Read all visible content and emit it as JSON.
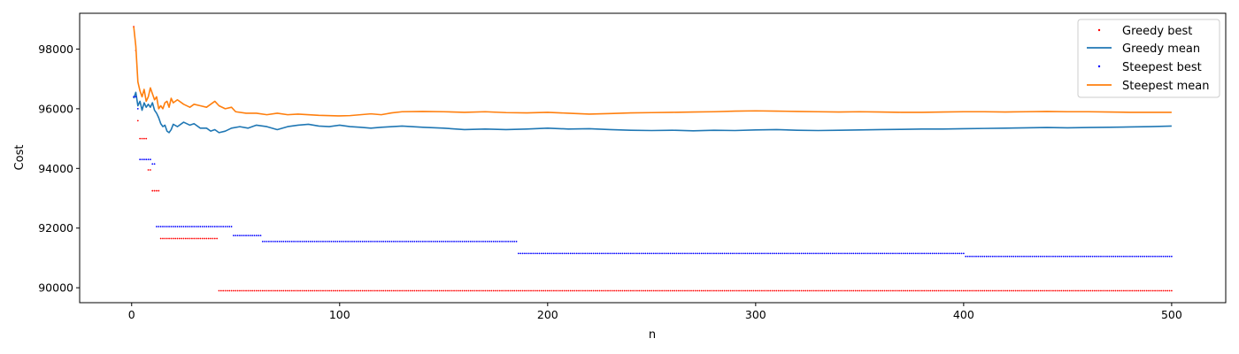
{
  "chart_data": {
    "type": "line",
    "title": "",
    "xlabel": "n",
    "ylabel": "Cost",
    "xlim": [
      -25,
      526
    ],
    "ylim": [
      89500,
      99200
    ],
    "xticks": [
      0,
      100,
      200,
      300,
      400,
      500
    ],
    "yticks": [
      90000,
      92000,
      94000,
      96000,
      98000
    ],
    "grid": false,
    "legend_position": "top-right",
    "series": [
      {
        "name": "Greedy best",
        "kind": "scatter",
        "color": "#ff0000",
        "steps": [
          {
            "from": 1,
            "to": 1,
            "value": 98750
          },
          {
            "from": 2,
            "to": 2,
            "value": 97950
          },
          {
            "from": 3,
            "to": 3,
            "value": 95600
          },
          {
            "from": 4,
            "to": 7,
            "value": 95000
          },
          {
            "from": 8,
            "to": 9,
            "value": 93950
          },
          {
            "from": 10,
            "to": 13,
            "value": 93250
          },
          {
            "from": 14,
            "to": 41,
            "value": 91650
          },
          {
            "from": 42,
            "to": 500,
            "value": 89900
          }
        ]
      },
      {
        "name": "Greedy mean",
        "kind": "line",
        "color": "#1f77b4",
        "points": [
          [
            1,
            96350
          ],
          [
            2,
            96550
          ],
          [
            3,
            96100
          ],
          [
            4,
            96250
          ],
          [
            5,
            95950
          ],
          [
            6,
            96200
          ],
          [
            7,
            96050
          ],
          [
            8,
            96150
          ],
          [
            9,
            96050
          ],
          [
            10,
            96200
          ],
          [
            11,
            95950
          ],
          [
            12,
            95850
          ],
          [
            13,
            95700
          ],
          [
            14,
            95500
          ],
          [
            15,
            95400
          ],
          [
            16,
            95450
          ],
          [
            17,
            95250
          ],
          [
            18,
            95200
          ],
          [
            19,
            95300
          ],
          [
            20,
            95480
          ],
          [
            22,
            95400
          ],
          [
            25,
            95550
          ],
          [
            28,
            95450
          ],
          [
            30,
            95500
          ],
          [
            33,
            95350
          ],
          [
            36,
            95350
          ],
          [
            38,
            95250
          ],
          [
            40,
            95300
          ],
          [
            42,
            95200
          ],
          [
            45,
            95250
          ],
          [
            48,
            95350
          ],
          [
            52,
            95400
          ],
          [
            56,
            95350
          ],
          [
            60,
            95450
          ],
          [
            65,
            95400
          ],
          [
            70,
            95300
          ],
          [
            75,
            95400
          ],
          [
            80,
            95450
          ],
          [
            85,
            95480
          ],
          [
            90,
            95420
          ],
          [
            95,
            95400
          ],
          [
            100,
            95450
          ],
          [
            105,
            95400
          ],
          [
            110,
            95380
          ],
          [
            115,
            95350
          ],
          [
            120,
            95380
          ],
          [
            130,
            95420
          ],
          [
            140,
            95380
          ],
          [
            150,
            95350
          ],
          [
            160,
            95300
          ],
          [
            170,
            95320
          ],
          [
            180,
            95300
          ],
          [
            190,
            95320
          ],
          [
            200,
            95350
          ],
          [
            210,
            95320
          ],
          [
            220,
            95330
          ],
          [
            230,
            95300
          ],
          [
            240,
            95280
          ],
          [
            250,
            95270
          ],
          [
            260,
            95280
          ],
          [
            270,
            95260
          ],
          [
            280,
            95280
          ],
          [
            290,
            95270
          ],
          [
            300,
            95290
          ],
          [
            310,
            95300
          ],
          [
            320,
            95280
          ],
          [
            330,
            95270
          ],
          [
            340,
            95280
          ],
          [
            350,
            95290
          ],
          [
            360,
            95300
          ],
          [
            370,
            95310
          ],
          [
            380,
            95320
          ],
          [
            390,
            95320
          ],
          [
            400,
            95330
          ],
          [
            410,
            95340
          ],
          [
            420,
            95350
          ],
          [
            430,
            95360
          ],
          [
            440,
            95370
          ],
          [
            450,
            95360
          ],
          [
            460,
            95370
          ],
          [
            470,
            95380
          ],
          [
            480,
            95390
          ],
          [
            490,
            95400
          ],
          [
            500,
            95420
          ]
        ]
      },
      {
        "name": "Steepest best",
        "kind": "scatter",
        "color": "#0000ff",
        "steps": [
          {
            "from": 1,
            "to": 2,
            "value": 96400
          },
          {
            "from": 3,
            "to": 3,
            "value": 96000
          },
          {
            "from": 4,
            "to": 9,
            "value": 94300
          },
          {
            "from": 10,
            "to": 11,
            "value": 94150
          },
          {
            "from": 12,
            "to": 48,
            "value": 92050
          },
          {
            "from": 49,
            "to": 62,
            "value": 91750
          },
          {
            "from": 63,
            "to": 185,
            "value": 91550
          },
          {
            "from": 186,
            "to": 400,
            "value": 91150
          },
          {
            "from": 401,
            "to": 500,
            "value": 91050
          }
        ]
      },
      {
        "name": "Steepest mean",
        "kind": "line",
        "color": "#ff7f0e",
        "points": [
          [
            1,
            98750
          ],
          [
            2,
            98100
          ],
          [
            3,
            96900
          ],
          [
            4,
            96600
          ],
          [
            5,
            96400
          ],
          [
            6,
            96650
          ],
          [
            7,
            96250
          ],
          [
            8,
            96400
          ],
          [
            9,
            96700
          ],
          [
            10,
            96500
          ],
          [
            11,
            96300
          ],
          [
            12,
            96400
          ],
          [
            13,
            96000
          ],
          [
            14,
            96100
          ],
          [
            15,
            96000
          ],
          [
            16,
            96200
          ],
          [
            17,
            96250
          ],
          [
            18,
            96050
          ],
          [
            19,
            96350
          ],
          [
            20,
            96200
          ],
          [
            22,
            96300
          ],
          [
            25,
            96150
          ],
          [
            28,
            96050
          ],
          [
            30,
            96150
          ],
          [
            33,
            96100
          ],
          [
            36,
            96050
          ],
          [
            38,
            96150
          ],
          [
            40,
            96250
          ],
          [
            42,
            96100
          ],
          [
            45,
            96000
          ],
          [
            48,
            96050
          ],
          [
            50,
            95900
          ],
          [
            55,
            95850
          ],
          [
            60,
            95850
          ],
          [
            65,
            95800
          ],
          [
            70,
            95850
          ],
          [
            75,
            95800
          ],
          [
            80,
            95820
          ],
          [
            90,
            95780
          ],
          [
            100,
            95760
          ],
          [
            105,
            95770
          ],
          [
            110,
            95800
          ],
          [
            115,
            95830
          ],
          [
            120,
            95800
          ],
          [
            125,
            95860
          ],
          [
            130,
            95900
          ],
          [
            140,
            95910
          ],
          [
            150,
            95900
          ],
          [
            160,
            95880
          ],
          [
            170,
            95900
          ],
          [
            180,
            95870
          ],
          [
            190,
            95860
          ],
          [
            200,
            95880
          ],
          [
            210,
            95850
          ],
          [
            220,
            95820
          ],
          [
            230,
            95840
          ],
          [
            240,
            95860
          ],
          [
            250,
            95870
          ],
          [
            260,
            95880
          ],
          [
            270,
            95890
          ],
          [
            280,
            95900
          ],
          [
            290,
            95920
          ],
          [
            300,
            95930
          ],
          [
            310,
            95920
          ],
          [
            320,
            95910
          ],
          [
            330,
            95900
          ],
          [
            340,
            95890
          ],
          [
            350,
            95900
          ],
          [
            360,
            95890
          ],
          [
            370,
            95880
          ],
          [
            380,
            95880
          ],
          [
            390,
            95890
          ],
          [
            400,
            95900
          ],
          [
            410,
            95900
          ],
          [
            420,
            95890
          ],
          [
            430,
            95900
          ],
          [
            440,
            95910
          ],
          [
            450,
            95900
          ],
          [
            460,
            95900
          ],
          [
            470,
            95890
          ],
          [
            480,
            95880
          ],
          [
            490,
            95880
          ],
          [
            500,
            95880
          ]
        ]
      }
    ]
  }
}
